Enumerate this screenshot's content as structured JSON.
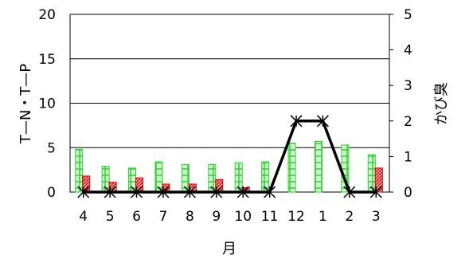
{
  "chart_data": {
    "type": "bar",
    "title": "",
    "xlabel": "月",
    "ylabel": "T—N・T—P",
    "y2label": "かび臭",
    "categories": [
      "4",
      "5",
      "6",
      "7",
      "8",
      "9",
      "10",
      "11",
      "12",
      "1",
      "2",
      "3"
    ],
    "ylim": [
      0,
      20
    ],
    "yticks": [
      "0",
      "5",
      "10",
      "15",
      "20"
    ],
    "y2lim": [
      0,
      5
    ],
    "y2ticks": [
      "0",
      "1",
      "2",
      "3",
      "4",
      "5"
    ],
    "grid": "horizontal",
    "legend": "none",
    "series": [
      {
        "values": [
          4.8,
          2.9,
          2.7,
          3.4,
          3.1,
          3.1,
          3.3,
          3.4,
          5.5,
          5.7,
          5.3,
          4.2
        ],
        "axis": "left",
        "kind": "bar",
        "color": "#33cc33",
        "fill": "#ccffcc"
      },
      {
        "values": [
          1.8,
          1.1,
          1.6,
          0.9,
          0.9,
          1.4,
          0.5,
          0.0,
          0.0,
          0.0,
          0.0,
          2.7
        ],
        "axis": "left",
        "kind": "bar",
        "color": "#cc0000",
        "fill": "#ff9999"
      },
      {
        "values": [
          0,
          0,
          0,
          0,
          0,
          0,
          0,
          0,
          2,
          2,
          0,
          0
        ],
        "axis": "right",
        "kind": "line",
        "marker": "star",
        "color": "#000000"
      }
    ]
  }
}
